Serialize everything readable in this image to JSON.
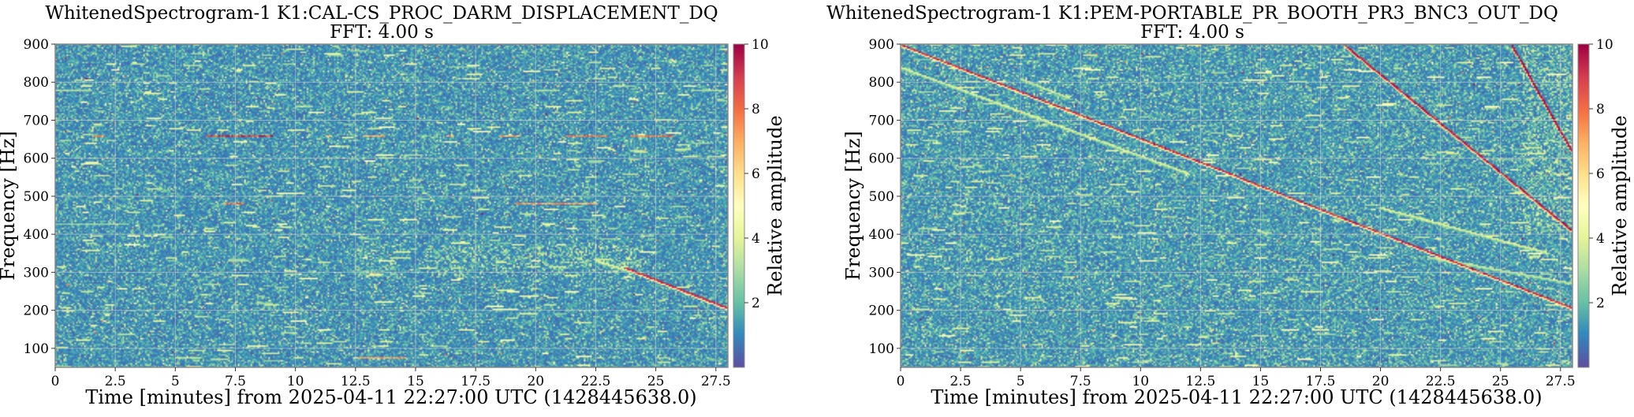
{
  "chart_data": [
    {
      "type": "heatmap",
      "title": "WhitenedSpectrogram-1 K1:CAL-CS_PROC_DARM_DISPLACEMENT_DQ",
      "subtitle": "FFT: 4.00 s",
      "xlabel": "Time [minutes] from 2025-04-11 22:27:00 UTC (1428445638.0)",
      "ylabel": "Frequency [Hz]",
      "xlim": [
        0,
        28
      ],
      "ylim": [
        50,
        900
      ],
      "xticks": [
        0,
        2.5,
        5,
        7.5,
        10,
        12.5,
        15,
        17.5,
        20,
        22.5,
        25,
        27.5
      ],
      "xtick_labels": [
        "0",
        "2.5",
        "5",
        "7.5",
        "10",
        "12.5",
        "15",
        "17.5",
        "20",
        "22.5",
        "25",
        "27.5"
      ],
      "yticks": [
        100,
        200,
        300,
        400,
        500,
        600,
        700,
        800,
        900
      ],
      "ytick_labels": [
        "100",
        "200",
        "300",
        "400",
        "500",
        "600",
        "700",
        "800",
        "900"
      ],
      "grid": true,
      "colormap": "Spectral_r",
      "colorbar": {
        "label": "Relative amplitude",
        "range": [
          0,
          10
        ],
        "ticks": [
          2,
          4,
          6,
          8,
          10
        ],
        "tick_labels": [
          "2",
          "4",
          "6",
          "8",
          "10"
        ]
      },
      "background_level": 1.2,
      "features": {
        "tracks": [
          {
            "t": [
              23.8,
              28
            ],
            "f": [
              310,
              205
            ],
            "amplitude": 9.5
          },
          {
            "t": [
              22.5,
              23.8
            ],
            "f": [
              330,
              305
            ],
            "amplitude": 4
          }
        ],
        "segments": [
          {
            "f": 660,
            "t": [
              6.3,
              9.0
            ],
            "amplitude": 10
          },
          {
            "f": 660,
            "t": [
              1.6,
              2.0
            ],
            "amplitude": 8
          },
          {
            "f": 660,
            "t": [
              11.3,
              11.5
            ],
            "amplitude": 8
          },
          {
            "f": 660,
            "t": [
              12.8,
              13.7
            ],
            "amplitude": 8
          },
          {
            "f": 660,
            "t": [
              16.3,
              16.6
            ],
            "amplitude": 8
          },
          {
            "f": 660,
            "t": [
              18.5,
              19.3
            ],
            "amplitude": 8
          },
          {
            "f": 660,
            "t": [
              21.3,
              23.0
            ],
            "amplitude": 9
          },
          {
            "f": 660,
            "t": [
              24.0,
              25.7
            ],
            "amplitude": 9
          },
          {
            "f": 480,
            "t": [
              7.0,
              7.8
            ],
            "amplitude": 9
          },
          {
            "f": 480,
            "t": [
              19.2,
              22.5
            ],
            "amplitude": 8
          },
          {
            "f": 75,
            "t": [
              12.6,
              14.6
            ],
            "amplitude": 8
          },
          {
            "f": 75,
            "t": [
              5.0,
              6.0
            ],
            "amplitude": 4
          },
          {
            "f": 780,
            "t": [
              0,
              1.5
            ],
            "amplitude": 3.5
          },
          {
            "f": 780,
            "t": [
              20,
              21
            ],
            "amplitude": 3.5
          },
          {
            "f": 780,
            "t": [
              26.5,
              27.8
            ],
            "amplitude": 3.5
          },
          {
            "f": 840,
            "t": [
              16.5,
              17.5
            ],
            "amplitude": 3
          },
          {
            "f": 425,
            "t": [
              0,
              3
            ],
            "amplitude": 3
          }
        ],
        "bursts": [
          {
            "t": [
              15.5,
              24.5
            ],
            "f": [
              290,
              370
            ],
            "amplitude": 3.5
          },
          {
            "t": [
              12.5,
              14.5
            ],
            "f": [
              280,
              360
            ],
            "amplitude": 3
          }
        ]
      }
    },
    {
      "type": "heatmap",
      "title": "WhitenedSpectrogram-1 K1:PEM-PORTABLE_PR_BOOTH_PR3_BNC3_OUT_DQ",
      "subtitle": "FFT: 4.00 s",
      "xlabel": "Time [minutes] from 2025-04-11 22:27:00 UTC (1428445638.0)",
      "ylabel": "Frequency [Hz]",
      "xlim": [
        0,
        28
      ],
      "ylim": [
        50,
        900
      ],
      "xticks": [
        0,
        2.5,
        5,
        7.5,
        10,
        12.5,
        15,
        17.5,
        20,
        22.5,
        25,
        27.5
      ],
      "xtick_labels": [
        "0",
        "2.5",
        "5",
        "7.5",
        "10",
        "12.5",
        "15",
        "17.5",
        "20",
        "22.5",
        "25",
        "27.5"
      ],
      "yticks": [
        100,
        200,
        300,
        400,
        500,
        600,
        700,
        800,
        900
      ],
      "ytick_labels": [
        "100",
        "200",
        "300",
        "400",
        "500",
        "600",
        "700",
        "800",
        "900"
      ],
      "grid": true,
      "colormap": "Spectral_r",
      "colorbar": {
        "label": "Relative amplitude",
        "range": [
          0,
          10
        ],
        "ticks": [
          2,
          4,
          6,
          8,
          10
        ],
        "tick_labels": [
          "2",
          "4",
          "6",
          "8",
          "10"
        ]
      },
      "background_level": 1.3,
      "features": {
        "tracks": [
          {
            "t": [
              0,
              28
            ],
            "f": [
              900,
              205
            ],
            "amplitude": 10
          },
          {
            "t": [
              18.5,
              28
            ],
            "f": [
              900,
              410
            ],
            "amplitude": 10
          },
          {
            "t": [
              25.5,
              28
            ],
            "f": [
              900,
              620
            ],
            "amplitude": 10
          },
          {
            "t": [
              0,
              12
            ],
            "f": [
              840,
              560
            ],
            "amplitude": 4
          },
          {
            "t": [
              20,
              27
            ],
            "f": [
              470,
              350
            ],
            "amplitude": 4
          },
          {
            "t": [
              22,
              28
            ],
            "f": [
              340,
              270
            ],
            "amplitude": 3.5
          },
          {
            "t": [
              5,
              7
            ],
            "f": [
              810,
              760
            ],
            "amplitude": 3.5
          }
        ],
        "segments": [],
        "bursts": [
          {
            "t": [
              26,
              28
            ],
            "f": [
              400,
              900
            ],
            "amplitude": 3.5
          }
        ]
      }
    }
  ]
}
